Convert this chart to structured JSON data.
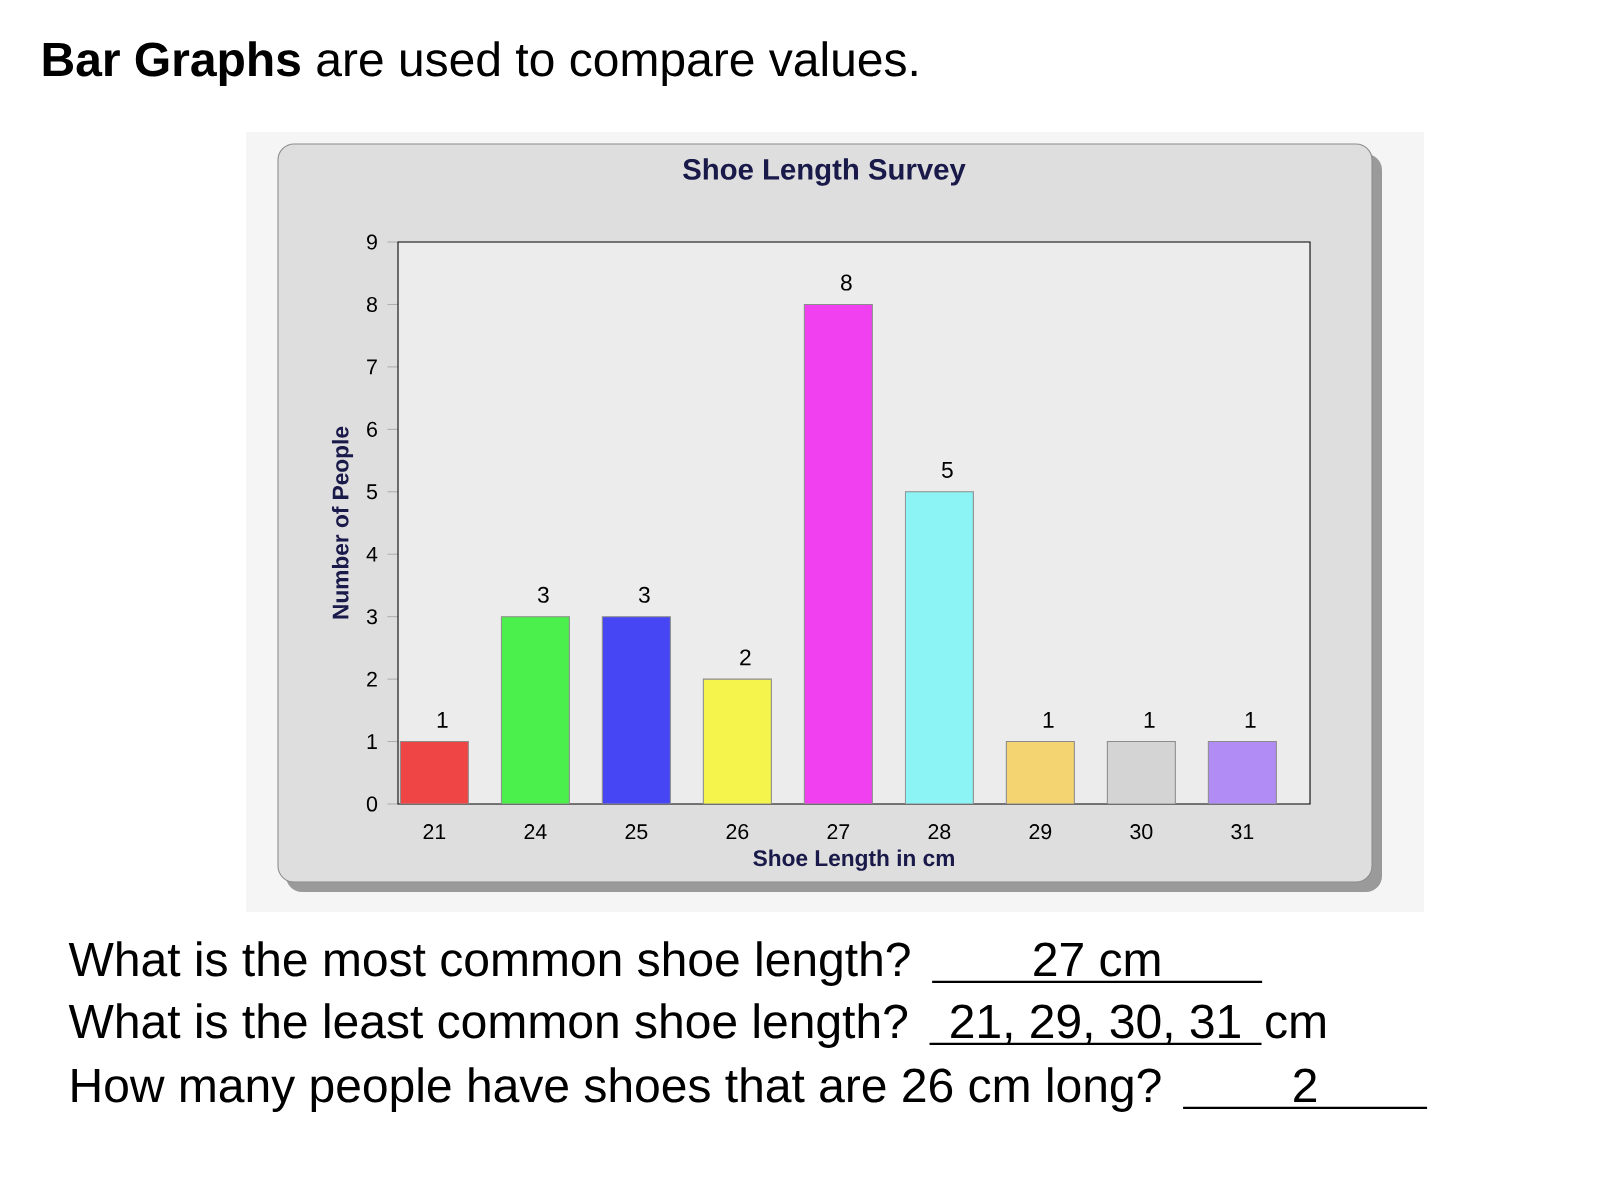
{
  "chart_data": {
    "type": "bar",
    "title": "Shoe Length Survey",
    "xlabel": "Shoe Length in cm",
    "ylabel": "Number of People",
    "categories": [
      "21",
      "24",
      "25",
      "26",
      "27",
      "28",
      "29",
      "30",
      "31"
    ],
    "values": [
      1,
      3,
      3,
      2,
      8,
      5,
      1,
      1,
      1
    ],
    "colors": [
      "#f04545",
      "#4cf04c",
      "#4646f4",
      "#f4f44c",
      "#f040f0",
      "#8cf4f4",
      "#f4d470",
      "#d4d4d4",
      "#b08cf4"
    ],
    "ylim": [
      0,
      9
    ],
    "yticks": [
      0,
      1,
      2,
      3,
      4,
      5,
      6,
      7,
      8,
      9
    ],
    "data_labels": true,
    "annotations": [
      "**Bar Graphs** are used to compare values.",
      "What is the most common shoe length?",
      "27 cm",
      "What is the least common shoe length?",
      "21, 29, 30, 31",
      "cm",
      "How many people have shoes that are 26 cm long?",
      "2"
    ]
  }
}
